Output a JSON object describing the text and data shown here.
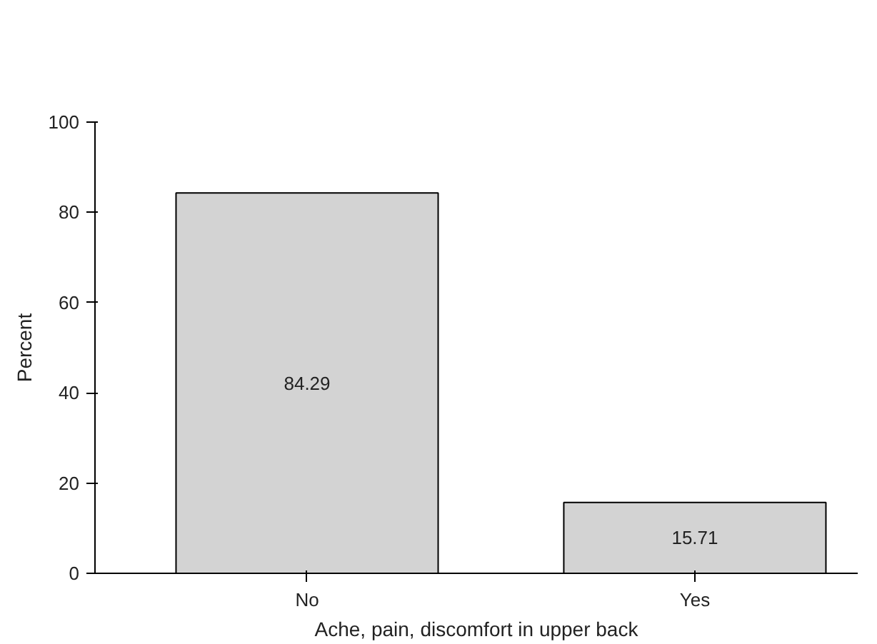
{
  "chart_data": {
    "type": "bar",
    "xlabel": "Ache, pain, discomfort in upper back",
    "ylabel": "Percent",
    "categories": [
      "No",
      "Yes"
    ],
    "values": [
      84.29,
      15.71
    ],
    "color": "#d3d3d3",
    "ylim": [
      0,
      100
    ],
    "yticks": [
      0,
      20,
      40,
      60,
      80,
      100
    ],
    "data_labels": true,
    "grid": false
  }
}
